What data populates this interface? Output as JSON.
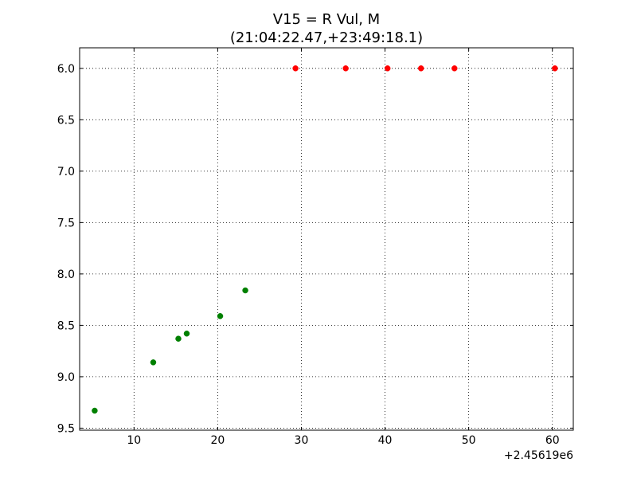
{
  "chart_data": {
    "type": "scatter",
    "title": "V15 = R Vul, M",
    "subtitle": "(21:04:22.47,+23:49:18.1)",
    "xlabel": "",
    "ylabel": "",
    "x_offset_label": "+2.45619e6",
    "xlim": [
      3.5,
      62.5
    ],
    "ylim": [
      9.52,
      5.8
    ],
    "y_inverted": true,
    "grid": true,
    "x_ticks": [
      10,
      20,
      30,
      40,
      50,
      60
    ],
    "x_tick_labels": [
      "10",
      "20",
      "30",
      "40",
      "50",
      "60"
    ],
    "y_ticks": [
      6.0,
      6.5,
      7.0,
      7.5,
      8.0,
      8.5,
      9.0,
      9.5
    ],
    "y_tick_labels": [
      "6.0",
      "6.5",
      "7.0",
      "7.5",
      "8.0",
      "8.5",
      "9.0",
      "9.5"
    ],
    "series": [
      {
        "color": "#008000",
        "points": [
          {
            "x": 5.3,
            "y": 9.33
          },
          {
            "x": 12.3,
            "y": 8.86
          },
          {
            "x": 15.3,
            "y": 8.63
          },
          {
            "x": 16.3,
            "y": 8.58
          },
          {
            "x": 20.3,
            "y": 8.41
          },
          {
            "x": 23.3,
            "y": 8.16
          }
        ]
      },
      {
        "color": "#ff0000",
        "points": [
          {
            "x": 29.3,
            "y": 6.0
          },
          {
            "x": 35.3,
            "y": 6.0
          },
          {
            "x": 40.3,
            "y": 6.0
          },
          {
            "x": 44.3,
            "y": 6.0
          },
          {
            "x": 48.3,
            "y": 6.0
          },
          {
            "x": 60.3,
            "y": 6.0
          }
        ]
      }
    ]
  }
}
